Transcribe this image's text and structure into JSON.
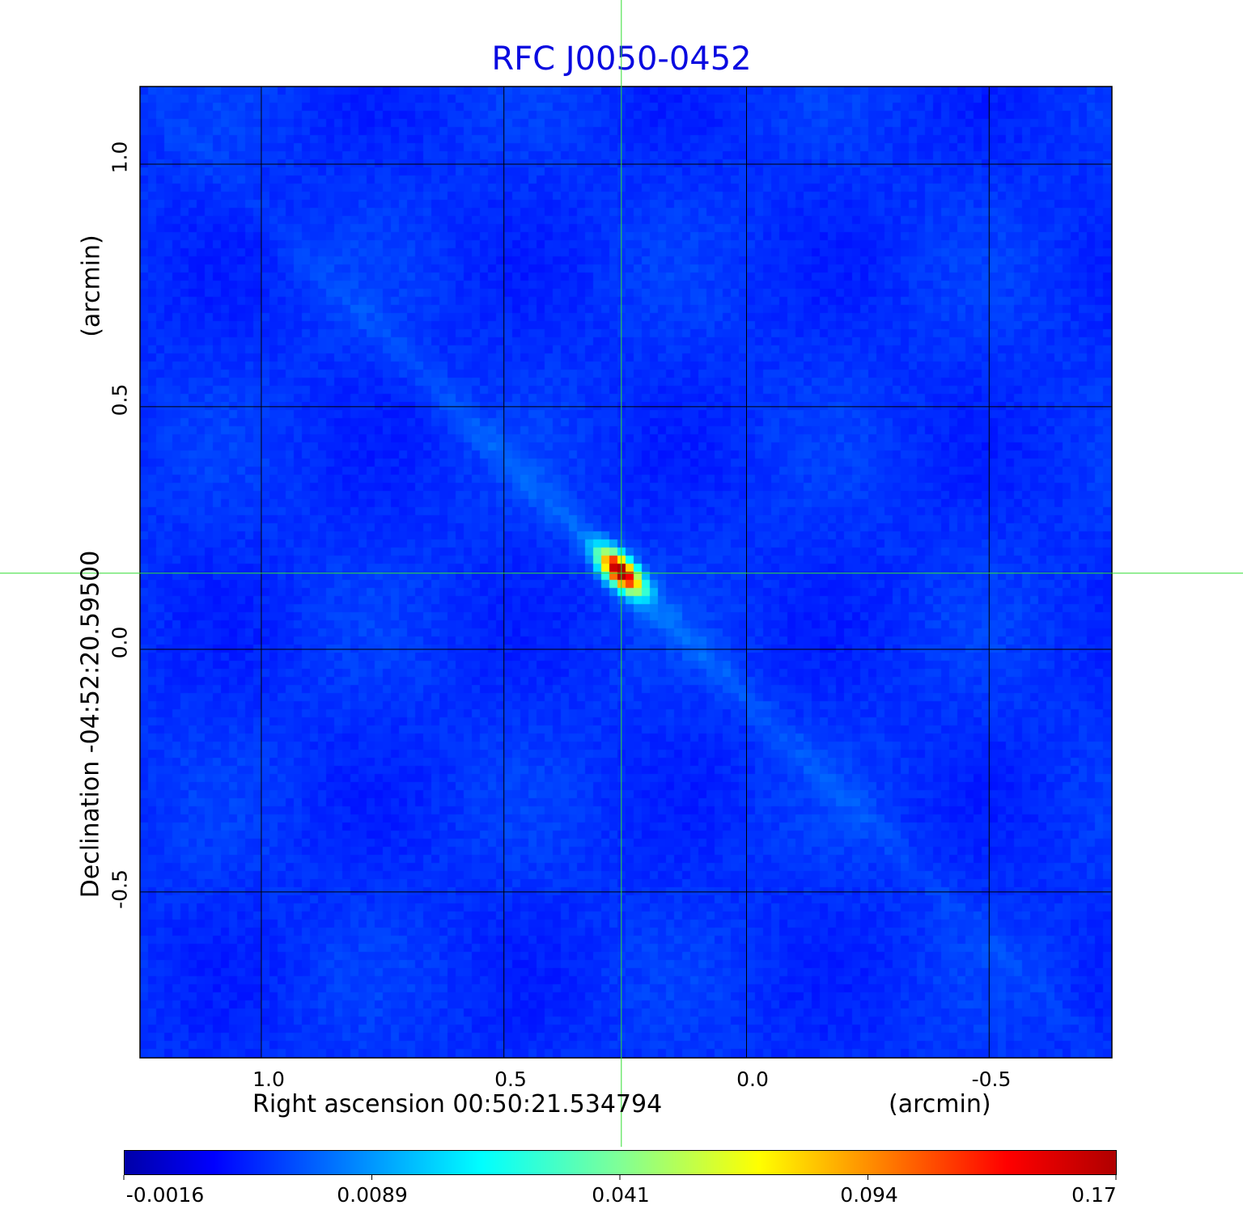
{
  "chart_data": {
    "type": "heatmap",
    "title": "RFC J0050-0452",
    "xlabel": "Right ascension  00:50:21.534794",
    "xunit": "(arcmin)",
    "ylabel": "Declination  -04:52:20.59500",
    "yunit": "(arcmin)",
    "xlim": [
      1.25,
      -0.753
    ],
    "ylim": [
      -0.842,
      1.16
    ],
    "x_ticks": [
      "1.0",
      "0.5",
      "0.0",
      "-0.5"
    ],
    "x_tick_values": [
      1.0,
      0.5,
      0.0,
      -0.5
    ],
    "y_ticks": [
      "1.0",
      "0.5",
      "0.0",
      "-0.5"
    ],
    "y_tick_values": [
      1.0,
      0.5,
      0.0,
      -0.5
    ],
    "grid": true,
    "colormap": "jet",
    "colorbar": {
      "placement": "bottom",
      "ticks": [
        "-0.0016",
        "0.0089",
        "0.041",
        "0.094",
        "0.17"
      ],
      "range": [
        -0.0016,
        0.17
      ]
    },
    "source_peak": {
      "x": 0.26,
      "y": 0.16,
      "value": 0.17
    },
    "crosshair": {
      "x": 0.258,
      "y": 0.157,
      "color": "#33dd33"
    },
    "title_color": "#0a0ae0"
  }
}
